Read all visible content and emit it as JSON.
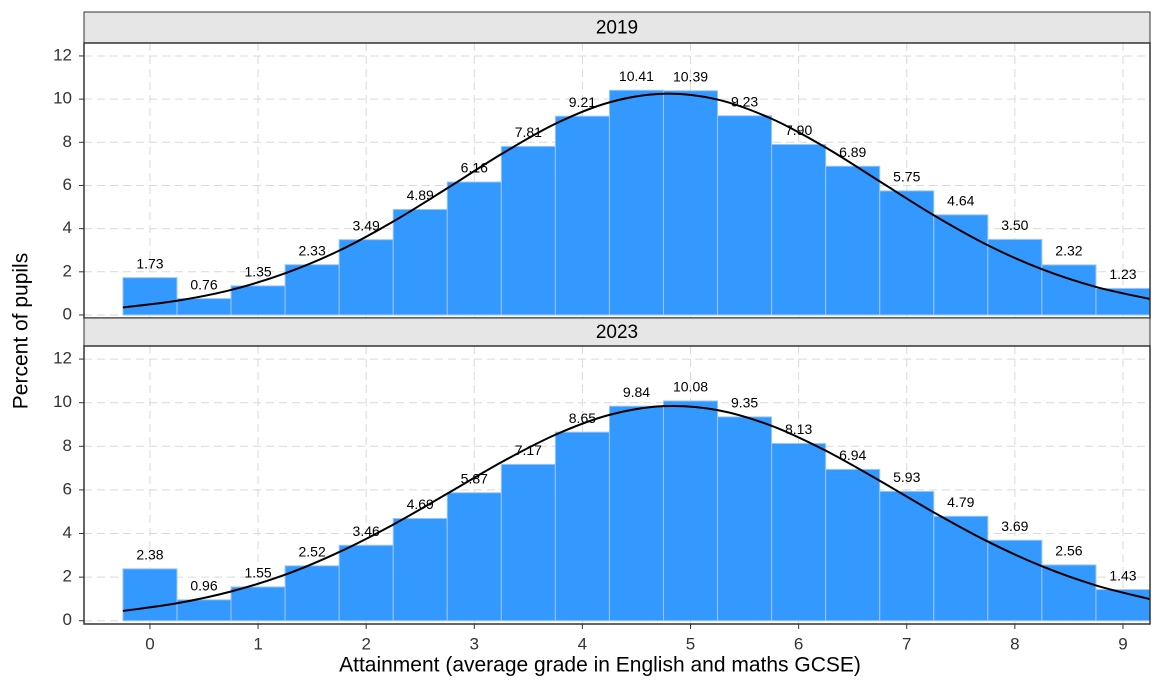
{
  "x_label": "Attainment (average grade in English and maths GCSE)",
  "y_label": "Percent of pupils",
  "chart_data": [
    {
      "type": "histogram",
      "title": "2019",
      "color": "#3399ff",
      "bins": [
        -0.25,
        0.25,
        0.75,
        1.25,
        1.75,
        2.25,
        2.75,
        3.25,
        3.75,
        4.25,
        4.75,
        5.25,
        5.75,
        6.25,
        6.75,
        7.25,
        7.75,
        8.25,
        8.75,
        9.25
      ],
      "values": [
        1.73,
        0.76,
        1.35,
        2.33,
        3.49,
        4.89,
        6.16,
        7.81,
        9.21,
        10.41,
        10.39,
        9.23,
        7.9,
        6.89,
        5.75,
        4.64,
        3.5,
        2.32,
        1.23
      ],
      "value_labels": [
        "1.73",
        "0.76",
        "1.35",
        "2.33",
        "3.49",
        "4.89",
        "6.16",
        "7.81",
        "9.21",
        "10.41",
        "10.39",
        "9.23",
        "7.90",
        "6.89",
        "5.75",
        "4.64",
        "3.50",
        "2.32",
        "1.23"
      ],
      "curve": {
        "color": "#000000",
        "x": [
          -0.25,
          0.25,
          0.75,
          1.25,
          1.75,
          2.25,
          2.75,
          3.25,
          3.75,
          4.25,
          4.75,
          5.25,
          5.75,
          6.25,
          6.75,
          7.25,
          7.75,
          8.25,
          8.75,
          9.25
        ],
        "y": [
          0.35,
          0.66,
          1.16,
          1.93,
          2.98,
          4.33,
          5.87,
          7.45,
          8.86,
          9.85,
          10.25,
          9.98,
          9.09,
          7.76,
          6.19,
          4.62,
          3.23,
          2.12,
          1.3,
          0.74
        ]
      },
      "xlim": [
        -0.61,
        9.25
      ],
      "xticks": [
        0,
        1,
        2,
        3,
        4,
        5,
        6,
        7,
        8,
        9
      ],
      "ylim": [
        -0.14,
        12.6
      ],
      "yticks": [
        0,
        2,
        4,
        6,
        8,
        10,
        12
      ],
      "grid": true
    },
    {
      "type": "histogram",
      "title": "2023",
      "color": "#3399ff",
      "bins": [
        -0.25,
        0.25,
        0.75,
        1.25,
        1.75,
        2.25,
        2.75,
        3.25,
        3.75,
        4.25,
        4.75,
        5.25,
        5.75,
        6.25,
        6.75,
        7.25,
        7.75,
        8.25,
        8.75,
        9.25
      ],
      "values": [
        2.38,
        0.96,
        1.55,
        2.52,
        3.46,
        4.69,
        5.87,
        7.17,
        8.65,
        9.84,
        10.08,
        9.35,
        8.13,
        6.94,
        5.93,
        4.79,
        3.69,
        2.56,
        1.43
      ],
      "value_labels": [
        "2.38",
        "0.96",
        "1.55",
        "2.52",
        "3.46",
        "4.69",
        "5.87",
        "7.17",
        "8.65",
        "9.84",
        "10.08",
        "9.35",
        "8.13",
        "6.94",
        "5.93",
        "4.79",
        "3.69",
        "2.56",
        "1.43"
      ],
      "curve": {
        "color": "#000000",
        "x": [
          -0.25,
          0.25,
          0.75,
          1.25,
          1.75,
          2.25,
          2.75,
          3.25,
          3.75,
          4.25,
          4.75,
          5.25,
          5.75,
          6.25,
          6.75,
          7.25,
          7.75,
          8.25,
          8.75,
          9.25
        ],
        "y": [
          0.45,
          0.8,
          1.34,
          2.11,
          3.15,
          4.41,
          5.83,
          7.27,
          8.53,
          9.44,
          9.84,
          9.66,
          8.94,
          7.8,
          6.42,
          4.97,
          3.63,
          2.5,
          1.62,
          0.99
        ]
      },
      "xlim": [
        -0.61,
        9.25
      ],
      "xticks": [
        0,
        1,
        2,
        3,
        4,
        5,
        6,
        7,
        8,
        9
      ],
      "ylim": [
        -0.15,
        12.6
      ],
      "yticks": [
        0,
        2,
        4,
        6,
        8,
        10,
        12
      ],
      "grid": true
    }
  ]
}
